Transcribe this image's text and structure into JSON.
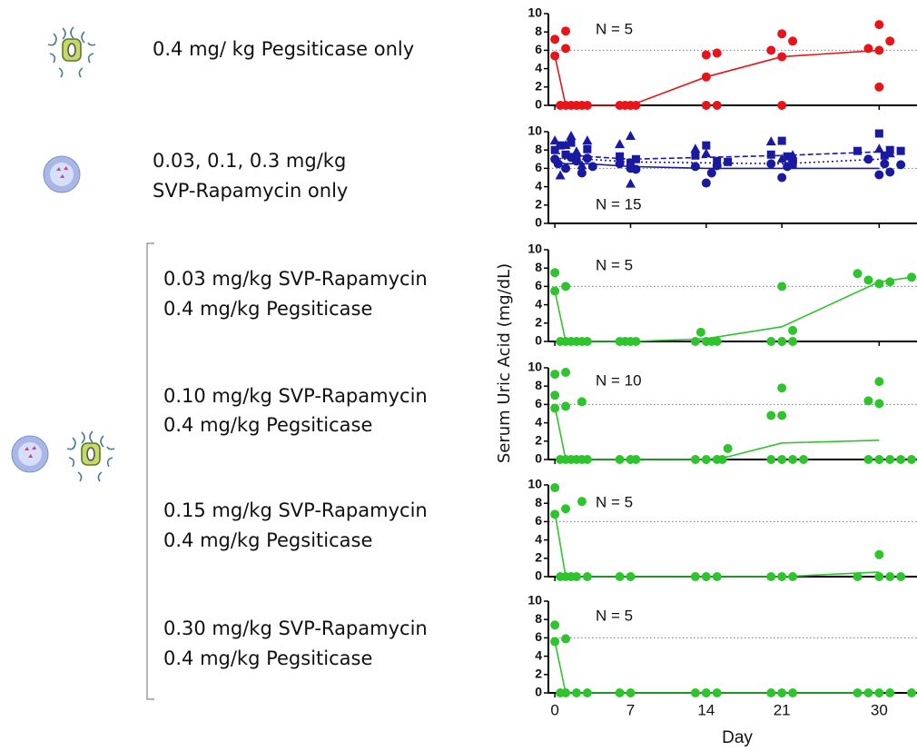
{
  "groups": [
    {
      "lines": [
        "0.4 mg/ kg Pegsiticase only"
      ]
    },
    {
      "lines": [
        "0.03, 0.1, 0.3 mg/kg",
        "SVP-Rapamycin only"
      ]
    },
    {
      "lines": [
        "0.03 mg/kg SVP-Rapamycin",
        "0.4 mg/kg Pegsiticase"
      ]
    },
    {
      "lines": [
        "0.10 mg/kg SVP-Rapamycin",
        "0.4 mg/kg Pegsiticase"
      ]
    },
    {
      "lines": [
        "0.15 mg/kg SVP-Rapamycin",
        "0.4 mg/kg Pegsiticase"
      ]
    },
    {
      "lines": [
        "0.30 mg/kg SVP-Rapamycin",
        "0.4 mg/kg Pegsiticase"
      ]
    }
  ],
  "ylabel": "Serum Uric Acid (mg/dL)",
  "chart_data": [
    {
      "type": "scatter",
      "annotation": "N = 5",
      "ylim": [
        0,
        10
      ],
      "yticks": [
        0,
        2,
        4,
        6,
        8,
        10
      ],
      "xlim": [
        -0.6,
        33.5
      ],
      "xticks": [
        0,
        7,
        14,
        21,
        30
      ],
      "ref_line": 6,
      "series": [
        {
          "color": "#e8141a",
          "marker": "circle",
          "dash": "solid",
          "x": [
            0,
            0,
            1,
            1,
            0.5,
            1,
            1.5,
            2,
            2.5,
            3,
            6,
            6.5,
            7,
            7.5,
            14,
            14,
            14,
            15,
            15,
            21,
            21,
            20,
            22,
            21,
            29,
            30,
            30,
            30,
            31
          ],
          "values": [
            7.2,
            5.4,
            8.1,
            6.2,
            0,
            0,
            0,
            0,
            0,
            0,
            0,
            0,
            0,
            0,
            5.5,
            3.1,
            0,
            5.7,
            0,
            7.8,
            5.3,
            6,
            7,
            0,
            6.2,
            8.8,
            6,
            2,
            7
          ],
          "line_x": [
            0,
            1,
            7,
            14,
            21,
            30
          ],
          "line_values": [
            5.4,
            0,
            0,
            3.1,
            5.3,
            6
          ]
        }
      ]
    },
    {
      "type": "scatter",
      "annotation": "N = 15",
      "ylim": [
        0,
        10
      ],
      "yticks": [
        0,
        2,
        4,
        6,
        8,
        10
      ],
      "xlim": [
        -0.6,
        33.5
      ],
      "xticks": [
        0,
        7,
        14,
        21,
        30
      ],
      "ref_line": 6,
      "series": [
        {
          "color": "#1a1aa0",
          "marker": "circle",
          "dash": "solid",
          "x": [
            0,
            0.3,
            1,
            1.5,
            2,
            2.5,
            3,
            3.5,
            6,
            7,
            7.5,
            13,
            14,
            14.5,
            15,
            20,
            21,
            21.5,
            22,
            29,
            30,
            30.5,
            31,
            32
          ],
          "values": [
            7,
            6.5,
            6,
            7.2,
            6.8,
            5.5,
            7.1,
            6.2,
            6.5,
            6,
            5.9,
            6.2,
            4.4,
            5.5,
            6.3,
            6.5,
            5,
            6.2,
            6.8,
            7,
            5.3,
            6.5,
            5.6,
            6.4
          ],
          "line_x": [
            0,
            1,
            3,
            7,
            14,
            21,
            30
          ],
          "line_values": [
            6.8,
            6.5,
            6.5,
            6.2,
            6,
            6,
            6
          ]
        },
        {
          "color": "#1a1aa0",
          "marker": "square",
          "dash": "dashed",
          "x": [
            0,
            0.5,
            1,
            1.5,
            2,
            3,
            6,
            7,
            7.5,
            13,
            14,
            15,
            16,
            20,
            21,
            21.5,
            22,
            28,
            30,
            30.5,
            31,
            32
          ],
          "values": [
            8,
            8.5,
            7.5,
            8.8,
            7.2,
            8.1,
            7.3,
            6.6,
            7,
            7.4,
            8.5,
            6.8,
            6.7,
            7.5,
            9,
            7.3,
            6.4,
            7.9,
            9.8,
            7.4,
            8,
            7.9
          ],
          "line_x": [
            0,
            1,
            3,
            7,
            14,
            21,
            30
          ],
          "line_values": [
            7.7,
            7.5,
            7.3,
            7,
            7.2,
            7.4,
            7.8
          ]
        },
        {
          "color": "#1a1aa0",
          "marker": "triangle",
          "dash": "dotted",
          "x": [
            0,
            0.5,
            1,
            1.5,
            2,
            2.5,
            3,
            7,
            7,
            6,
            13,
            14,
            20,
            21,
            22,
            30,
            31
          ],
          "values": [
            9,
            5.2,
            8.5,
            9.5,
            7.8,
            6.3,
            9,
            4.3,
            9.5,
            8.6,
            8.1,
            7.6,
            8.9,
            7,
            7.4,
            8.1,
            7.6
          ],
          "line_x": [
            0,
            1,
            3,
            7,
            14,
            21,
            30
          ],
          "line_values": [
            7.1,
            7,
            7,
            6.7,
            6.6,
            6.5,
            7
          ]
        }
      ]
    },
    {
      "type": "scatter",
      "annotation": "N = 5",
      "ylim": [
        0,
        10
      ],
      "yticks": [
        0,
        2,
        4,
        6,
        8,
        10
      ],
      "xlim": [
        -0.6,
        33.5
      ],
      "xticks": [
        0,
        7,
        14,
        21,
        30
      ],
      "ref_line": 6,
      "series": [
        {
          "color": "#2ec42e",
          "marker": "circle",
          "dash": "solid",
          "x": [
            0,
            0,
            1,
            0.5,
            1,
            1.5,
            2,
            2.5,
            3,
            6,
            6.5,
            7,
            7.5,
            13,
            13.5,
            14,
            14.5,
            15,
            21,
            20,
            21,
            22,
            22,
            28,
            29,
            30,
            31,
            33
          ],
          "values": [
            7.5,
            5.5,
            6,
            0,
            0,
            0,
            0,
            0,
            0,
            0,
            0,
            0,
            0,
            0,
            1,
            0,
            0,
            0,
            6,
            0,
            0,
            0,
            1.2,
            7.4,
            6.7,
            6.3,
            6.5,
            7
          ],
          "line_x": [
            0,
            1,
            7,
            14,
            21,
            30,
            33
          ],
          "line_values": [
            5.5,
            0,
            0,
            0.3,
            1.6,
            6.5,
            7
          ]
        }
      ]
    },
    {
      "type": "scatter",
      "annotation": "N = 10",
      "ylim": [
        0,
        10
      ],
      "yticks": [
        0,
        2,
        4,
        6,
        8,
        10
      ],
      "xlim": [
        -0.6,
        33.5
      ],
      "xticks": [
        0,
        7,
        14,
        21,
        30
      ],
      "ref_line": 6,
      "series": [
        {
          "color": "#2ec42e",
          "marker": "circle",
          "dash": "solid",
          "x": [
            0,
            0,
            0,
            1,
            1,
            2.5,
            0.5,
            1,
            1.5,
            2,
            2.5,
            3,
            6,
            7,
            7.5,
            13,
            14,
            15,
            16,
            15.5,
            20,
            21,
            21,
            20,
            21,
            22,
            23,
            29,
            30,
            30,
            29,
            30,
            31,
            32,
            33
          ],
          "values": [
            9.3,
            7,
            5.6,
            9.5,
            5.8,
            6.3,
            0,
            0,
            0,
            0,
            0,
            0,
            0,
            0,
            0,
            0,
            0,
            0,
            1.2,
            0,
            4.8,
            7.8,
            4.8,
            0,
            0,
            0,
            0,
            6.4,
            8.5,
            6.1,
            0,
            0,
            0,
            0,
            0
          ],
          "line_x": [
            0,
            1,
            7,
            14,
            16,
            21,
            30
          ],
          "line_values": [
            5.8,
            0,
            0,
            0,
            0.3,
            1.8,
            2.1
          ]
        }
      ]
    },
    {
      "type": "scatter",
      "annotation": "N = 5",
      "ylim": [
        0,
        10
      ],
      "yticks": [
        0,
        2,
        4,
        6,
        8,
        10
      ],
      "xlim": [
        -0.6,
        33.5
      ],
      "xticks": [
        0,
        7,
        14,
        21,
        30
      ],
      "ref_line": 6,
      "series": [
        {
          "color": "#2ec42e",
          "marker": "circle",
          "dash": "solid",
          "x": [
            0,
            0,
            1,
            2.5,
            0.5,
            1,
            1.5,
            2,
            3,
            6,
            7,
            13,
            14,
            15,
            20,
            21,
            22,
            28,
            30,
            30,
            31,
            32
          ],
          "values": [
            9.7,
            6.8,
            7.4,
            8.2,
            0,
            0,
            0,
            0,
            0,
            0,
            0,
            0,
            0,
            0,
            0,
            0,
            0,
            0,
            2.4,
            0,
            0,
            0
          ],
          "line_x": [
            0,
            1,
            7,
            14,
            21,
            30
          ],
          "line_values": [
            7,
            0,
            0,
            0,
            0,
            0.5
          ]
        }
      ]
    },
    {
      "type": "scatter",
      "annotation": "N = 5",
      "ylim": [
        0,
        10
      ],
      "yticks": [
        0,
        2,
        4,
        6,
        8,
        10
      ],
      "xlim": [
        -0.6,
        33.5
      ],
      "xticks": [
        0,
        7,
        14,
        21,
        30
      ],
      "ref_line": 6,
      "xlabel": "Day",
      "series": [
        {
          "color": "#2ec42e",
          "marker": "circle",
          "dash": "solid",
          "x": [
            0,
            0,
            1,
            0.5,
            1,
            2,
            3,
            6,
            7,
            13,
            14,
            15,
            20,
            21,
            22,
            28,
            29,
            30,
            31,
            33
          ],
          "values": [
            7.4,
            5.6,
            5.9,
            0,
            0,
            0,
            0,
            0,
            0,
            0,
            0,
            0,
            0,
            0,
            0,
            0,
            0,
            0,
            0,
            0
          ],
          "line_x": [
            0,
            1,
            7,
            14,
            21,
            30
          ],
          "line_values": [
            5.6,
            0,
            0,
            0,
            0,
            0
          ]
        }
      ]
    }
  ]
}
